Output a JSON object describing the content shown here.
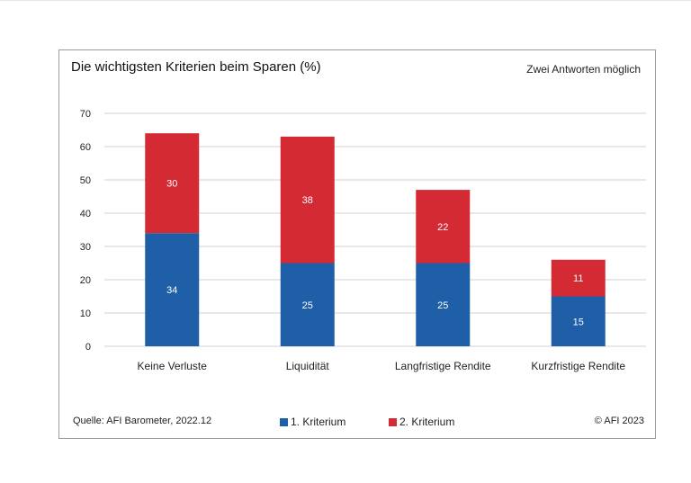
{
  "chart_data": {
    "type": "bar",
    "stacked": true,
    "title": "Die wichtigsten Kriterien beim Sparen (%)",
    "note": "Zwei Antworten möglich",
    "categories": [
      "Keine Verluste",
      "Liquidität",
      "Langfristige Rendite",
      "Kurzfristige Rendite"
    ],
    "series": [
      {
        "name": "1. Kriterium",
        "color": "#1f5fa8",
        "values": [
          34,
          25,
          25,
          15
        ]
      },
      {
        "name": "2. Kriterium",
        "color": "#d42a33",
        "values": [
          30,
          38,
          22,
          11
        ]
      }
    ],
    "ylim": [
      0,
      70
    ],
    "yticks": [
      "0",
      "10",
      "20",
      "30",
      "40",
      "50",
      "60",
      "70"
    ],
    "grid": true,
    "legend_position": "bottom",
    "source": "Quelle: AFI Barometer, 2022.12",
    "copyright": "© AFI 2023"
  }
}
